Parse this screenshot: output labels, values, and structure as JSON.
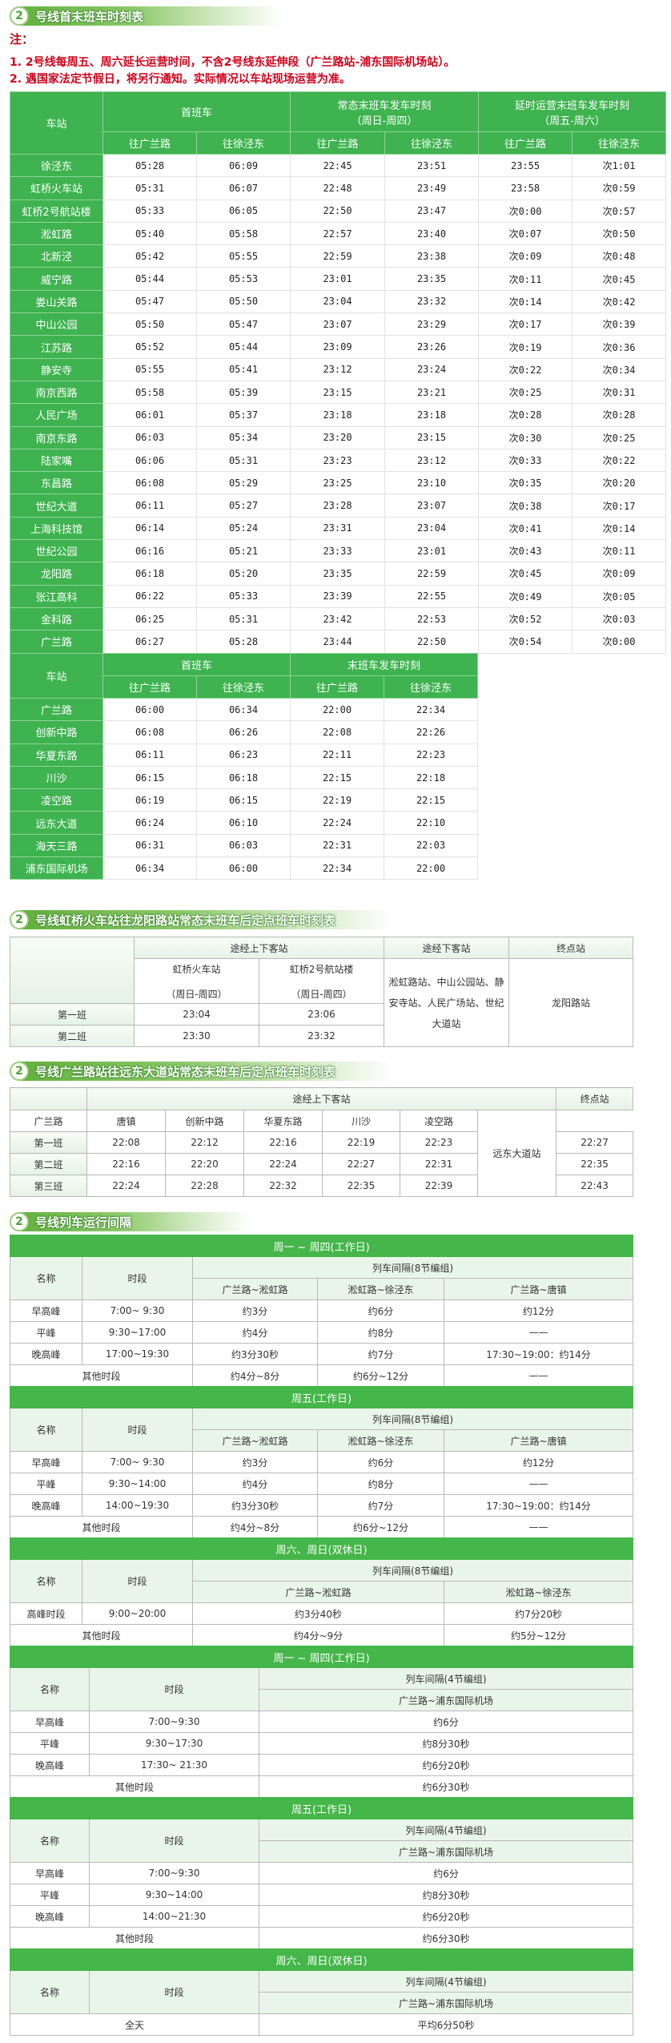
{
  "first_last": {
    "section_number": "2",
    "title": "号线首末班车时刻表",
    "note_label": "注：",
    "notes": [
      "1. 2号线每周五、周六延长运营时间，不含2号线东延伸段（广兰路站-浦东国际机场站）。",
      "2. 遇国家法定节假日，将另行通知。实际情况以车站现场运营为准。"
    ],
    "main": {
      "station_header": "车站",
      "first_train": "首班车",
      "normal_last": "常态末班车发车时刻",
      "normal_last_days": "（周日-周四）",
      "extended_last": "延时运营末班车发车时刻",
      "extended_last_days": "（周五-周六）",
      "dir_guanglan": "往广兰路",
      "dir_xujingdong": "往徐泾东",
      "rows": [
        {
          "station": "徐泾东",
          "times": [
            "05:28",
            "06:09",
            "22:45",
            "23:51",
            "23:55",
            "次1:01"
          ]
        },
        {
          "station": "虹桥火车站",
          "times": [
            "05:31",
            "06:07",
            "22:48",
            "23:49",
            "23:58",
            "次0:59"
          ]
        },
        {
          "station": "虹桥2号航站楼",
          "times": [
            "05:33",
            "06:05",
            "22:50",
            "23:47",
            "次0:00",
            "次0:57"
          ]
        },
        {
          "station": "淞虹路",
          "times": [
            "05:40",
            "05:58",
            "22:57",
            "23:40",
            "次0:07",
            "次0:50"
          ]
        },
        {
          "station": "北新泾",
          "times": [
            "05:42",
            "05:55",
            "22:59",
            "23:38",
            "次0:09",
            "次0:48"
          ]
        },
        {
          "station": "威宁路",
          "times": [
            "05:44",
            "05:53",
            "23:01",
            "23:35",
            "次0:11",
            "次0:45"
          ]
        },
        {
          "station": "娄山关路",
          "times": [
            "05:47",
            "05:50",
            "23:04",
            "23:32",
            "次0:14",
            "次0:42"
          ]
        },
        {
          "station": "中山公园",
          "times": [
            "05:50",
            "05:47",
            "23:07",
            "23:29",
            "次0:17",
            "次0:39"
          ]
        },
        {
          "station": "江苏路",
          "times": [
            "05:52",
            "05:44",
            "23:09",
            "23:26",
            "次0:19",
            "次0:36"
          ]
        },
        {
          "station": "静安寺",
          "times": [
            "05:55",
            "05:41",
            "23:12",
            "23:24",
            "次0:22",
            "次0:34"
          ]
        },
        {
          "station": "南京西路",
          "times": [
            "05:58",
            "05:39",
            "23:15",
            "23:21",
            "次0:25",
            "次0:31"
          ]
        },
        {
          "station": "人民广场",
          "times": [
            "06:01",
            "05:37",
            "23:18",
            "23:18",
            "次0:28",
            "次0:28"
          ]
        },
        {
          "station": "南京东路",
          "times": [
            "06:03",
            "05:34",
            "23:20",
            "23:15",
            "次0:30",
            "次0:25"
          ]
        },
        {
          "station": "陆家嘴",
          "times": [
            "06:06",
            "05:31",
            "23:23",
            "23:12",
            "次0:33",
            "次0:22"
          ]
        },
        {
          "station": "东昌路",
          "times": [
            "06:08",
            "05:29",
            "23:25",
            "23:10",
            "次0:35",
            "次0:20"
          ]
        },
        {
          "station": "世纪大道",
          "times": [
            "06:11",
            "05:27",
            "23:28",
            "23:07",
            "次0:38",
            "次0:17"
          ]
        },
        {
          "station": "上海科技馆",
          "times": [
            "06:14",
            "05:24",
            "23:31",
            "23:04",
            "次0:41",
            "次0:14"
          ]
        },
        {
          "station": "世纪公园",
          "times": [
            "06:16",
            "05:21",
            "23:33",
            "23:01",
            "次0:43",
            "次0:11"
          ]
        },
        {
          "station": "龙阳路",
          "times": [
            "06:18",
            "05:20",
            "23:35",
            "22:59",
            "次0:45",
            "次0:09"
          ]
        },
        {
          "station": "张江高科",
          "times": [
            "06:22",
            "05:33",
            "23:39",
            "22:55",
            "次0:49",
            "次0:05"
          ]
        },
        {
          "station": "金科路",
          "times": [
            "06:25",
            "05:31",
            "23:42",
            "22:53",
            "次0:52",
            "次0:03"
          ]
        },
        {
          "station": "广兰路",
          "times": [
            "06:27",
            "05:28",
            "23:44",
            "22:50",
            "次0:54",
            "次0:00"
          ]
        }
      ]
    },
    "east_extension": {
      "station_header": "车站",
      "first_train": "首班车",
      "last_train": "末班车发车时刻",
      "dir_guanglan": "往广兰路",
      "dir_xujingdong": "往徐泾东",
      "rows": [
        {
          "station": "广兰路",
          "times": [
            "06:00",
            "06:34",
            "22:00",
            "22:34"
          ]
        },
        {
          "station": "创新中路",
          "times": [
            "06:08",
            "06:26",
            "22:08",
            "22:26"
          ]
        },
        {
          "station": "华夏东路",
          "times": [
            "06:11",
            "06:23",
            "22:11",
            "22:23"
          ]
        },
        {
          "station": "川沙",
          "times": [
            "06:15",
            "06:18",
            "22:15",
            "22:18"
          ]
        },
        {
          "station": "凌空路",
          "times": [
            "06:19",
            "06:15",
            "22:19",
            "22:15"
          ]
        },
        {
          "station": "远东大道",
          "times": [
            "06:24",
            "06:10",
            "22:24",
            "22:10"
          ]
        },
        {
          "station": "海天三路",
          "times": [
            "06:31",
            "06:03",
            "22:31",
            "22:03"
          ]
        },
        {
          "station": "浦东国际机场",
          "times": [
            "06:34",
            "06:00",
            "22:34",
            "22:00"
          ]
        }
      ]
    }
  },
  "hongqiao_special": {
    "section_number": "2",
    "title": "号线虹桥火车站往龙阳路站常态末班车后定点班车时刻表",
    "via_board_header": "途经上下客站",
    "via_alight_header": "途经下客站",
    "terminal_header": "终点站",
    "stations": [
      {
        "name": "虹桥火车站",
        "days": "（周日-周四）"
      },
      {
        "name": "虹桥2号航站楼",
        "days": "（周日-周四）"
      }
    ],
    "via_alight": "淞虹路站、中山公园站、静安寺站、人民广场站、世纪大道站",
    "terminal": "龙阳路站",
    "rows": [
      {
        "label": "第一班",
        "times": [
          "23:04",
          "23:06"
        ]
      },
      {
        "label": "第二班",
        "times": [
          "23:30",
          "23:32"
        ]
      }
    ]
  },
  "guanglan_special": {
    "section_number": "2",
    "title": "号线广兰路站往远东大道站常态末班车后定点班车时刻表",
    "via_board_header": "途经上下客站",
    "terminal_header": "终点站",
    "stations": [
      "广兰路",
      "唐镇",
      "创新中路",
      "华夏东路",
      "川沙",
      "凌空路"
    ],
    "terminal": "远东大道站",
    "rows": [
      {
        "label": "第一班",
        "times": [
          "22:08",
          "22:12",
          "22:16",
          "22:19",
          "22:23",
          "22:27"
        ]
      },
      {
        "label": "第二班",
        "times": [
          "22:16",
          "22:20",
          "22:24",
          "22:27",
          "22:31",
          "22:35"
        ]
      },
      {
        "label": "第三班",
        "times": [
          "22:24",
          "22:28",
          "22:32",
          "22:35",
          "22:39",
          "22:43"
        ]
      }
    ]
  },
  "intervals": {
    "section_number": "2",
    "title": "号线列车运行间隔",
    "blocks": [
      {
        "day": "周一  ~  周四(工作日)",
        "name_header": "名称",
        "period_header": "时段",
        "interval_header": "列车间隔(8节编组)",
        "routes": [
          "广兰路~淞虹路",
          "淞虹路~徐泾东",
          "广兰路~唐镇"
        ],
        "rows": [
          {
            "name": "早高峰",
            "period": "7:00~ 9:30",
            "values": [
              "约3分",
              "约6分",
              "约12分"
            ]
          },
          {
            "name": "平峰",
            "period": "9:30~17:00",
            "values": [
              "约4分",
              "约8分",
              "——"
            ]
          },
          {
            "name": "晚高峰",
            "period": "17:00~19:30",
            "values": [
              "约3分30秒",
              "约7分",
              "17:30~19:00：约14分"
            ]
          },
          {
            "label": "其他时段",
            "values": [
              "约4分~8分",
              "约6分~12分",
              "——"
            ]
          }
        ]
      },
      {
        "day": "周五(工作日)",
        "name_header": "名称",
        "period_header": "时段",
        "interval_header": "列车间隔(8节编组)",
        "routes": [
          "广兰路~淞虹路",
          "淞虹路~徐泾东",
          "广兰路~唐镇"
        ],
        "rows": [
          {
            "name": "早高峰",
            "period": "7:00~ 9:30",
            "values": [
              "约3分",
              "约6分",
              "约12分"
            ]
          },
          {
            "name": "平峰",
            "period": "9:30~14:00",
            "values": [
              "约4分",
              "约8分",
              "——"
            ]
          },
          {
            "name": "晚高峰",
            "period": "14:00~19:30",
            "values": [
              "约3分30秒",
              "约7分",
              "17:30~19:00：约14分"
            ]
          },
          {
            "label": "其他时段",
            "values": [
              "约4分~8分",
              "约6分~12分",
              "——"
            ]
          }
        ]
      },
      {
        "day": "周六、周日(双休日)",
        "name_header": "名称",
        "period_header": "时段",
        "interval_header": "列车间隔(8节编组)",
        "routes": [
          "广兰路~淞虹路",
          "淞虹路~徐泾东"
        ],
        "rows": [
          {
            "name": "高峰时段",
            "period": "9:00~20:00",
            "values": [
              "约3分40秒",
              "约7分20秒"
            ]
          },
          {
            "label": "其他时段",
            "values": [
              "约4分~9分",
              "约5分~12分"
            ]
          }
        ]
      },
      {
        "day": "周一  ~  周四(工作日)",
        "name_header": "名称",
        "period_header": "时段",
        "interval_header": "列车间隔(4节编组)",
        "routes": [
          "广兰路~浦东国际机场"
        ],
        "rows": [
          {
            "name": "早高峰",
            "period": "7:00~9:30",
            "values": [
              "约6分"
            ]
          },
          {
            "name": "平峰",
            "period": "9:30~17:30",
            "values": [
              "约8分30秒"
            ]
          },
          {
            "name": "晚高峰",
            "period": "17:30~ 21:30",
            "values": [
              "约6分20秒"
            ]
          },
          {
            "label": "其他时段",
            "values": [
              "约6分30秒"
            ]
          }
        ]
      },
      {
        "day": "周五(工作日)",
        "name_header": "名称",
        "period_header": "时段",
        "interval_header": "列车间隔(4节编组)",
        "routes": [
          "广兰路~浦东国际机场"
        ],
        "rows": [
          {
            "name": "早高峰",
            "period": "7:00~9:30",
            "values": [
              "约6分"
            ]
          },
          {
            "name": "平峰",
            "period": "9:30~14:00",
            "values": [
              "约8分30秒"
            ]
          },
          {
            "name": "晚高峰",
            "period": "14:00~21:30",
            "values": [
              "约6分20秒"
            ]
          },
          {
            "label": "其他时段",
            "values": [
              "约6分30秒"
            ]
          }
        ]
      },
      {
        "day": "周六、周日(双休日)",
        "name_header": "名称",
        "period_header": "时段",
        "interval_header": "列车间隔(4节编组)",
        "routes": [
          "广兰路~浦东国际机场"
        ],
        "rows": [
          {
            "label": "全天",
            "values": [
              "平均6分50秒"
            ]
          }
        ]
      }
    ]
  },
  "colors": {
    "header_green": "#3eb34f",
    "note_red": "#d0021b",
    "banner_green": "#5fae3a"
  }
}
